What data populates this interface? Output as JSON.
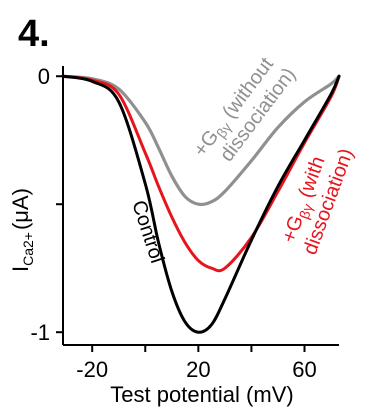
{
  "panel_label": "4.",
  "colors": {
    "control": "#000000",
    "with_dissociation": "#e8141c",
    "without_dissociation": "#909090",
    "axis": "#000000"
  },
  "chart_data": {
    "type": "line",
    "title": "",
    "xlabel": "Test potential (mV)",
    "ylabel": "I Ca2+ (μA)",
    "ylabel_parts": {
      "main": "I",
      "sub": "Ca2+",
      "unit": "(μA)"
    },
    "xlim": [
      -31,
      73
    ],
    "ylim": [
      -1.05,
      0.04
    ],
    "xticks": [
      -20,
      20,
      60
    ],
    "xtick_labels": [
      "-20",
      "20",
      "60"
    ],
    "xticks_minor": [
      0,
      40
    ],
    "yticks": [
      0,
      -1
    ],
    "ytick_labels": [
      "0",
      "-1"
    ],
    "yticks_minor": [
      -0.5
    ],
    "grid": false,
    "legend": "none",
    "series": [
      {
        "name": "Control",
        "key": "control",
        "x": [
          -31,
          -20,
          -10,
          0,
          5,
          10,
          15,
          20,
          25,
          30,
          40,
          50,
          60,
          70,
          73
        ],
        "y": [
          0,
          -0.02,
          -0.1,
          -0.42,
          -0.65,
          -0.84,
          -0.96,
          -1.0,
          -0.97,
          -0.87,
          -0.64,
          -0.43,
          -0.25,
          -0.07,
          0
        ]
      },
      {
        "name": "+Gβγ (with dissociation)",
        "key": "with_dissociation",
        "x": [
          -31,
          -20,
          -10,
          0,
          5,
          10,
          15,
          20,
          25,
          30,
          40,
          50,
          60,
          70,
          73
        ],
        "y": [
          0,
          -0.015,
          -0.07,
          -0.3,
          -0.43,
          -0.55,
          -0.65,
          -0.72,
          -0.75,
          -0.75,
          -0.63,
          -0.45,
          -0.26,
          -0.08,
          0
        ]
      },
      {
        "name": "+Gβγ (without dissociation)",
        "key": "without_dissociation",
        "x": [
          -31,
          -20,
          -10,
          0,
          5,
          10,
          15,
          20,
          25,
          30,
          40,
          50,
          60,
          70,
          73
        ],
        "y": [
          0,
          -0.01,
          -0.05,
          -0.18,
          -0.28,
          -0.39,
          -0.47,
          -0.5,
          -0.49,
          -0.45,
          -0.33,
          -0.2,
          -0.1,
          -0.03,
          0
        ]
      }
    ],
    "annotations": {
      "control": "Control",
      "without_line1": "+G",
      "without_sub": "βγ",
      "without_rest1": " (without",
      "without_line2": "dissociation)",
      "with_line1": "+G",
      "with_sub": "βγ",
      "with_rest1": " (with",
      "with_line2": "dissociation)"
    }
  }
}
